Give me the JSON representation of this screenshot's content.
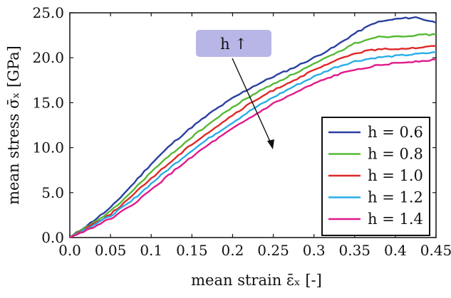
{
  "chart_data": {
    "type": "line",
    "xlabel": "mean strain ε̄ₓ [-]",
    "ylabel": "mean stress σ̄ₓ [GPa]",
    "xlim": [
      0.0,
      0.45
    ],
    "ylim": [
      0.0,
      25.0
    ],
    "x_ticks": [
      "0.0",
      "0.05",
      "0.1",
      "0.15",
      "0.2",
      "0.25",
      "0.3",
      "0.35",
      "0.4",
      "0.45"
    ],
    "y_ticks": [
      "0.0",
      "5.0",
      "10.0",
      "15.0",
      "20.0",
      "25.0"
    ],
    "grid": false,
    "legend_position": "bottom-right",
    "annotation": {
      "text": "h ↑",
      "arrow": "from box toward lower-right across curves"
    },
    "x": [
      0.0,
      0.025,
      0.05,
      0.075,
      0.1,
      0.125,
      0.15,
      0.175,
      0.2,
      0.225,
      0.25,
      0.275,
      0.3,
      0.325,
      0.35,
      0.375,
      0.4,
      0.425,
      0.45
    ],
    "series": [
      {
        "name": "h = 0.6",
        "color": "#2a3fa0",
        "values": [
          0.0,
          1.6,
          3.3,
          5.7,
          8.2,
          10.4,
          12.3,
          14.0,
          15.5,
          16.8,
          17.9,
          18.9,
          20.0,
          21.2,
          22.7,
          23.9,
          24.3,
          24.5,
          23.9
        ]
      },
      {
        "name": "h = 0.8",
        "color": "#55b935",
        "values": [
          0.0,
          1.4,
          2.9,
          5.0,
          7.3,
          9.3,
          11.2,
          12.9,
          14.5,
          15.9,
          17.1,
          18.2,
          19.3,
          20.4,
          21.6,
          22.3,
          22.4,
          22.5,
          22.6
        ]
      },
      {
        "name": "h = 1.0",
        "color": "#e02828",
        "values": [
          0.0,
          1.3,
          2.6,
          4.5,
          6.6,
          8.5,
          10.4,
          12.0,
          13.6,
          15.1,
          16.4,
          17.5,
          18.6,
          19.6,
          20.5,
          20.9,
          21.0,
          21.1,
          21.3
        ]
      },
      {
        "name": "h = 1.2",
        "color": "#29aee8",
        "values": [
          0.0,
          1.2,
          2.4,
          4.0,
          6.0,
          7.9,
          9.7,
          11.3,
          12.8,
          14.3,
          15.6,
          16.8,
          17.9,
          18.9,
          19.6,
          20.0,
          20.2,
          20.4,
          20.6
        ]
      },
      {
        "name": "h = 1.4",
        "color": "#e0198a",
        "values": [
          0.0,
          1.0,
          2.1,
          3.5,
          5.3,
          7.2,
          9.0,
          10.6,
          12.1,
          13.5,
          14.9,
          16.0,
          17.1,
          18.0,
          18.7,
          19.1,
          19.4,
          19.6,
          19.8
        ]
      }
    ]
  }
}
